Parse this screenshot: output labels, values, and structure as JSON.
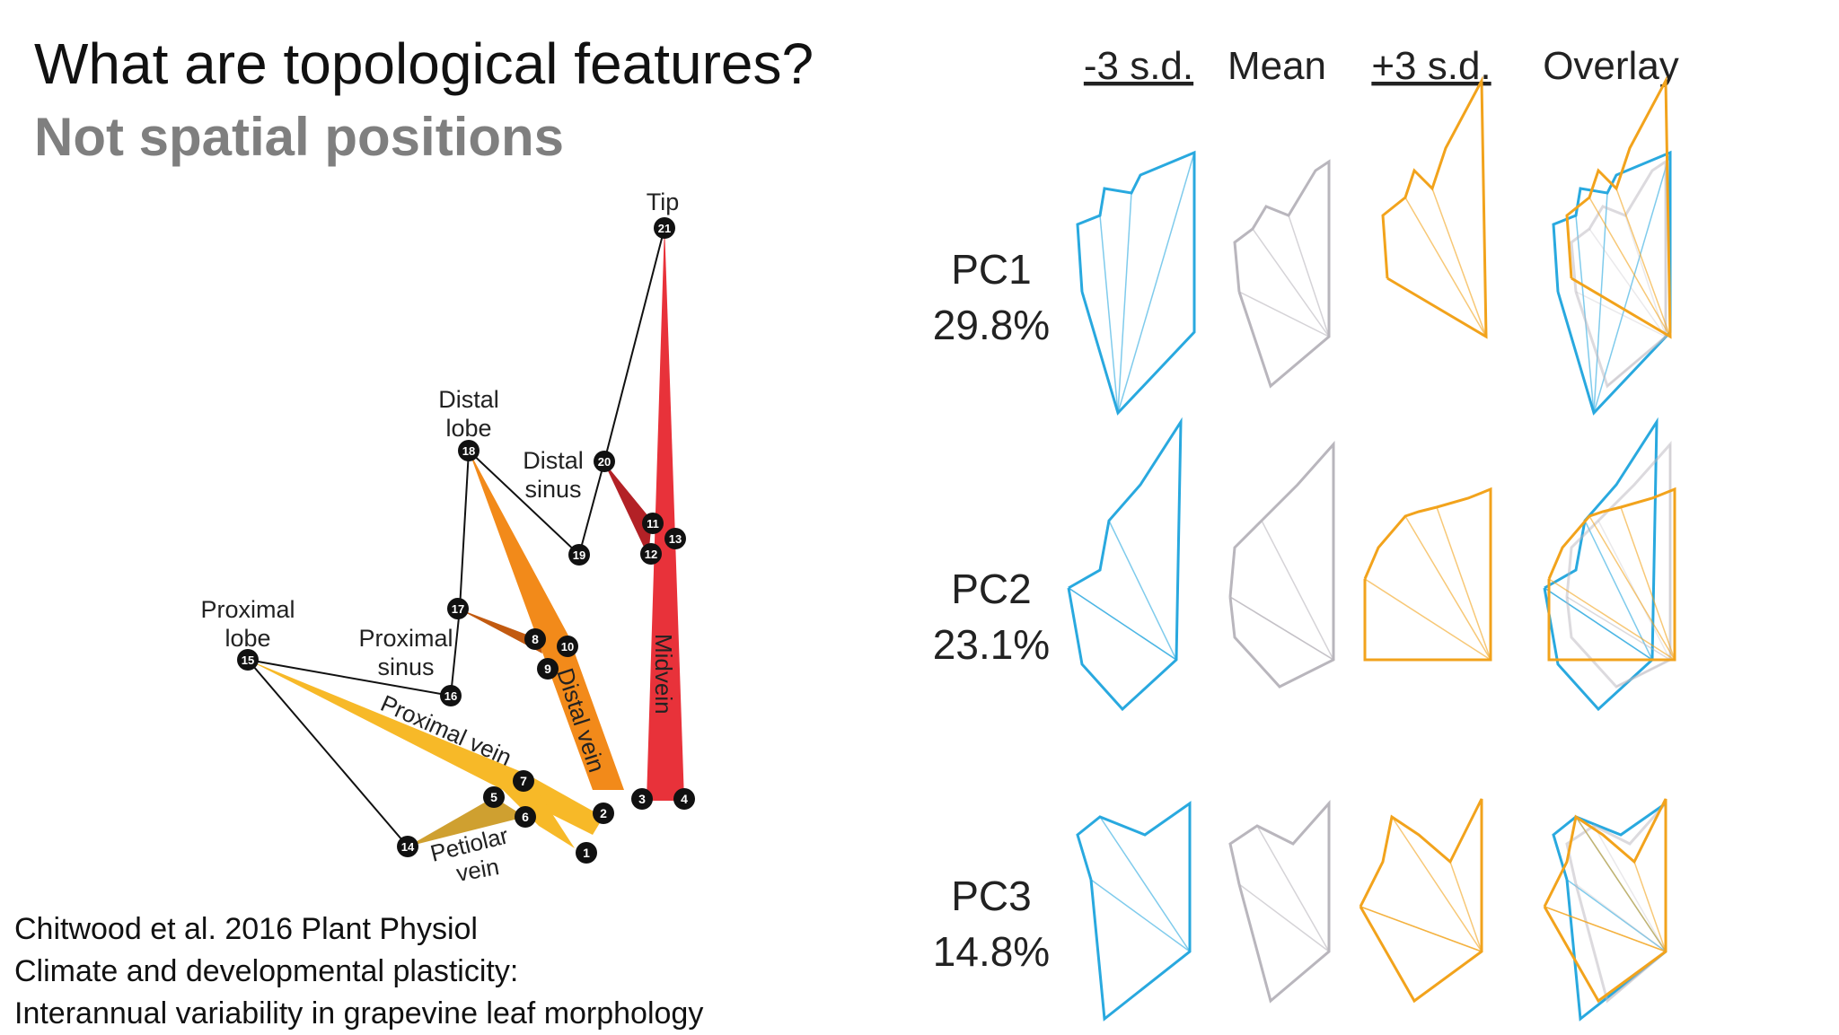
{
  "slide": {
    "title": "What are topological features?",
    "subtitle": "Not spatial positions"
  },
  "citation": {
    "line1": "Chitwood et al. 2016 Plant Physiol",
    "line2": "Climate and developmental plasticity:",
    "line3": "Interannual variability in grapevine leaf morphology"
  },
  "leaf_diagram": {
    "labels": {
      "tip": "Tip",
      "distal_lobe_1": "Distal",
      "distal_lobe_2": "lobe",
      "distal_sinus_1": "Distal",
      "distal_sinus_2": "sinus",
      "proximal_lobe_1": "Proximal",
      "proximal_lobe_2": "lobe",
      "proximal_sinus_1": "Proximal",
      "proximal_sinus_2": "sinus",
      "proximal_vein": "Proximal vein",
      "distal_vein": "Distal vein",
      "midvein": "Midvein",
      "petiolar_vein_1": "Petiolar",
      "petiolar_vein_2": "vein"
    },
    "landmarks": [
      "1",
      "2",
      "3",
      "4",
      "5",
      "6",
      "7",
      "8",
      "9",
      "10",
      "11",
      "12",
      "13",
      "14",
      "15",
      "16",
      "17",
      "18",
      "19",
      "20",
      "21"
    ],
    "colors": {
      "midvein": "#e8323a",
      "midvein_dark": "#b32126",
      "distal_vein": "#f28a1a",
      "distal_vein_dark": "#c25a10",
      "proximal_vein": "#f7b928",
      "petiolar_vein": "#cfa030",
      "marker": "#111111"
    }
  },
  "pca_panel": {
    "columns": [
      "-3 s.d.",
      "Mean",
      "+3 s.d.",
      "Overlay"
    ],
    "rows": [
      {
        "pc": "PC1",
        "variance": "29.8%"
      },
      {
        "pc": "PC2",
        "variance": "23.1%"
      },
      {
        "pc": "PC3",
        "variance": "14.8%"
      }
    ],
    "colors": {
      "minus": "#29a9df",
      "mean": "#b9b6bd",
      "plus": "#f2a31c"
    }
  }
}
